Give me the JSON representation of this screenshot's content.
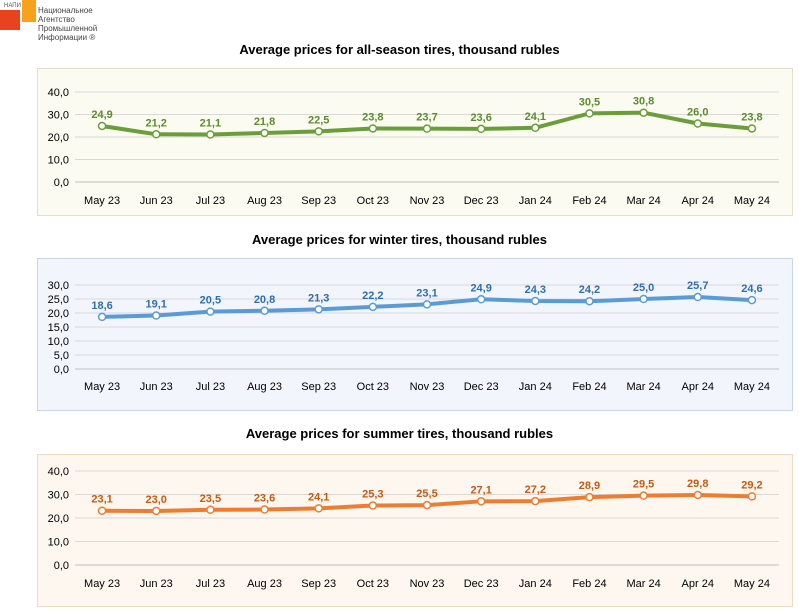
{
  "logo": {
    "tag": "НАПИ",
    "lines": [
      "Национальное",
      "Агентство",
      "Промышленной",
      "Информации ®"
    ]
  },
  "chart_data": [
    {
      "type": "line",
      "title": "Average prices for all-season tires, thousand rubles",
      "categories": [
        "May 23",
        "Jun 23",
        "Jul 23",
        "Aug 23",
        "Sep 23",
        "Oct 23",
        "Nov 23",
        "Dec 23",
        "Jan 24",
        "Feb 24",
        "Mar 24",
        "Apr 24",
        "May 24"
      ],
      "values": [
        24.9,
        21.2,
        21.1,
        21.8,
        22.5,
        23.8,
        23.7,
        23.6,
        24.1,
        30.5,
        30.8,
        26.0,
        23.8
      ],
      "value_labels": [
        "24,9",
        "21,2",
        "21,1",
        "21,8",
        "22,5",
        "23,8",
        "23,7",
        "23,6",
        "24,1",
        "30,5",
        "30,8",
        "26,0",
        "23,8"
      ],
      "yticks": [
        "0,0",
        "10,0",
        "20,0",
        "30,0",
        "40,0"
      ],
      "ylim": [
        0,
        40
      ],
      "grid": true,
      "color": "#6a9e3a",
      "label_color": "#5b8c2e",
      "bg": "#fbfbf1",
      "border": "#dde3c4"
    },
    {
      "type": "line",
      "title": "Average prices for winter tires, thousand rubles",
      "categories": [
        "May 23",
        "Jun 23",
        "Jul 23",
        "Aug 23",
        "Sep 23",
        "Oct 23",
        "Nov 23",
        "Dec 23",
        "Jan 24",
        "Feb 24",
        "Mar 24",
        "Apr 24",
        "May 24"
      ],
      "values": [
        18.6,
        19.1,
        20.5,
        20.8,
        21.3,
        22.2,
        23.1,
        24.9,
        24.3,
        24.2,
        25.0,
        25.7,
        24.6
      ],
      "value_labels": [
        "18,6",
        "19,1",
        "20,5",
        "20,8",
        "21,3",
        "22,2",
        "23,1",
        "24,9",
        "24,3",
        "24,2",
        "25,0",
        "25,7",
        "24,6"
      ],
      "yticks": [
        "0,0",
        "5,0",
        "10,0",
        "15,0",
        "20,0",
        "25,0",
        "30,0"
      ],
      "ylim": [
        0,
        30
      ],
      "grid": true,
      "color": "#5b9bd5",
      "label_color": "#2e6fb0",
      "bg": "#f2f5fb",
      "border": "#c9d5ea"
    },
    {
      "type": "line",
      "title": "Average prices for summer tires, thousand rubles",
      "categories": [
        "May 23",
        "Jun 23",
        "Jul 23",
        "Aug 23",
        "Sep 23",
        "Oct 23",
        "Nov 23",
        "Dec 23",
        "Jan 24",
        "Feb 24",
        "Mar 24",
        "Apr 24",
        "May 24"
      ],
      "values": [
        23.1,
        23.0,
        23.5,
        23.6,
        24.1,
        25.3,
        25.5,
        27.1,
        27.2,
        28.9,
        29.5,
        29.8,
        29.2
      ],
      "value_labels": [
        "23,1",
        "23,0",
        "23,5",
        "23,6",
        "24,1",
        "25,3",
        "25,5",
        "27,1",
        "27,2",
        "28,9",
        "29,5",
        "29,8",
        "29,2"
      ],
      "yticks": [
        "0,0",
        "10,0",
        "20,0",
        "30,0",
        "40,0"
      ],
      "ylim": [
        0,
        40
      ],
      "grid": true,
      "color": "#ed7d31",
      "label_color": "#c55a11",
      "bg": "#fdf7ef",
      "border": "#f0d9bd"
    }
  ]
}
